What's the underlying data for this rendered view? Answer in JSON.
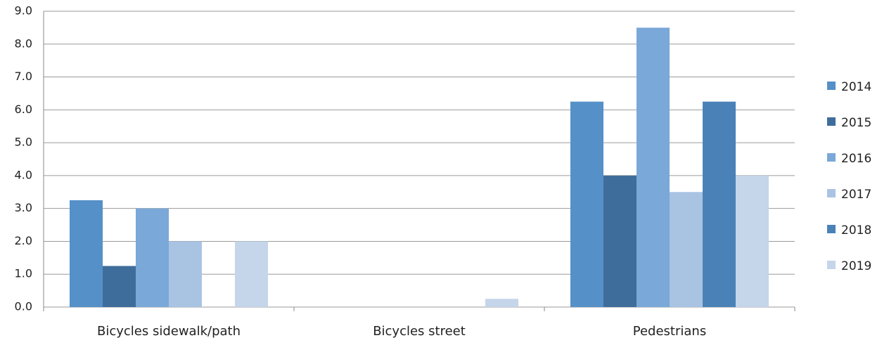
{
  "chart_data": {
    "type": "bar",
    "categories": [
      "Bicycles sidewalk/path",
      "Bicycles street",
      "Pedestrians"
    ],
    "series": [
      {
        "name": "2014",
        "color": "#5590c8",
        "values": [
          3.25,
          0,
          6.25
        ]
      },
      {
        "name": "2015",
        "color": "#3f6d9b",
        "values": [
          1.25,
          0,
          4.0
        ]
      },
      {
        "name": "2016",
        "color": "#7aa8d8",
        "values": [
          3.0,
          0,
          8.5
        ]
      },
      {
        "name": "2017",
        "color": "#a9c3e3",
        "values": [
          2.0,
          0,
          3.5
        ]
      },
      {
        "name": "2018",
        "color": "#4a82b8",
        "values": [
          0,
          0,
          6.25
        ]
      },
      {
        "name": "2019",
        "color": "#c5d5ea",
        "values": [
          2.0,
          0.25,
          4.0
        ]
      }
    ],
    "ylim": [
      0,
      9
    ],
    "yticks": [
      {
        "value": 0,
        "label": "0.0"
      },
      {
        "value": 1,
        "label": "1.0"
      },
      {
        "value": 2,
        "label": "2.0"
      },
      {
        "value": 3,
        "label": "3.0"
      },
      {
        "value": 4,
        "label": "4.0"
      },
      {
        "value": 5,
        "label": "5.0"
      },
      {
        "value": 6,
        "label": "6.0"
      },
      {
        "value": 7,
        "label": "7.0"
      },
      {
        "value": 8,
        "label": "8.0"
      },
      {
        "value": 9,
        "label": "9.0"
      }
    ],
    "grid": true,
    "legend": "right"
  }
}
